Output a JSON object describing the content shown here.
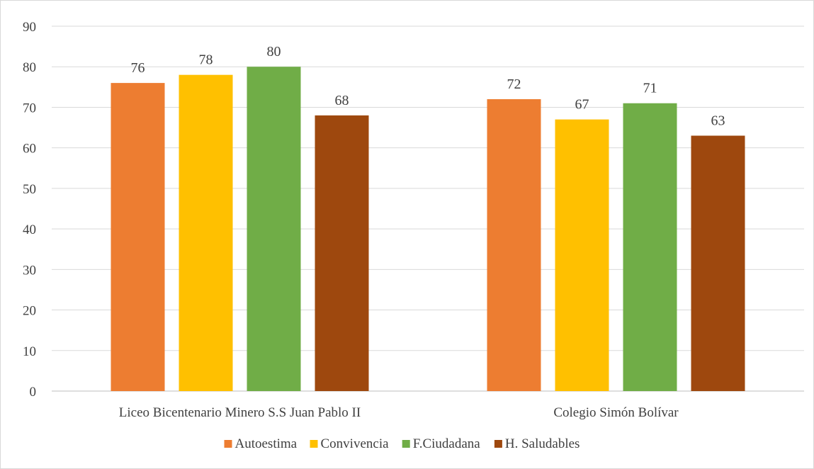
{
  "chart_data": {
    "type": "bar",
    "title": "",
    "xlabel": "",
    "ylabel": "",
    "categories": [
      "Liceo Bicentenario Minero S.S Juan Pablo II",
      "Colegio Simón Bolívar"
    ],
    "series": [
      {
        "name": "Autoestima",
        "values": [
          76,
          72
        ],
        "color": "#ed7d31"
      },
      {
        "name": "Convivencia",
        "values": [
          78,
          67
        ],
        "color": "#ffc000"
      },
      {
        "name": "F.Ciudadana",
        "values": [
          80,
          71
        ],
        "color": "#70ad47"
      },
      {
        "name": "H. Saludables",
        "values": [
          68,
          63
        ],
        "color": "#9e480e"
      }
    ],
    "ylim": [
      0,
      90
    ],
    "yticks": [
      0,
      10,
      20,
      30,
      40,
      50,
      60,
      70,
      80,
      90
    ],
    "grid": true,
    "legend_position": "bottom",
    "data_labels": true
  }
}
